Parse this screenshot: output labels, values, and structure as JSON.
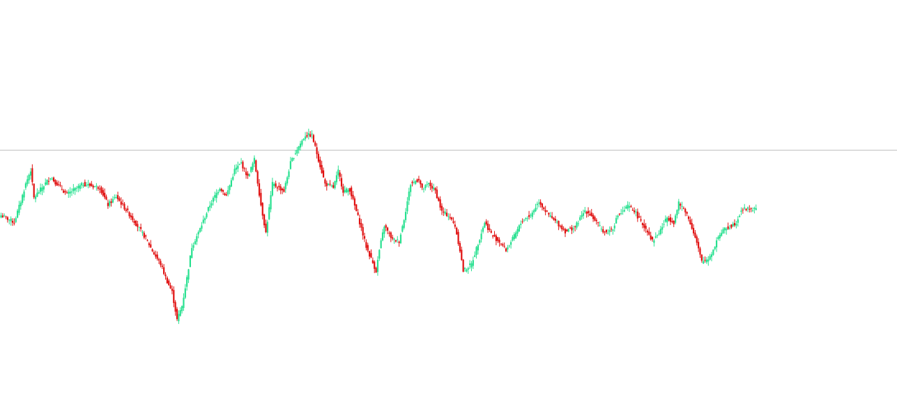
{
  "colors": {
    "background": "#ffffff",
    "bull": "#26e08f",
    "bear": "#e01010",
    "price_line": "#c0c0c0"
  },
  "chart_data": {
    "type": "candlestick",
    "price_range": [
      0,
      564
    ],
    "current_price": 349,
    "grid": false,
    "legend": "none",
    "anchor_closes": [
      [
        0,
        255
      ],
      [
        8,
        245
      ],
      [
        12,
        275
      ],
      [
        15,
        300
      ],
      [
        18,
        320
      ],
      [
        20,
        280
      ],
      [
        30,
        310
      ],
      [
        40,
        285
      ],
      [
        50,
        300
      ],
      [
        60,
        295
      ],
      [
        65,
        270
      ],
      [
        70,
        282
      ],
      [
        80,
        250
      ],
      [
        84,
        236
      ],
      [
        88,
        222
      ],
      [
        93,
        200
      ],
      [
        97,
        185
      ],
      [
        101,
        160
      ],
      [
        104,
        145
      ],
      [
        107,
        105
      ],
      [
        110,
        125
      ],
      [
        113,
        165
      ],
      [
        116,
        210
      ],
      [
        120,
        230
      ],
      [
        127,
        270
      ],
      [
        133,
        295
      ],
      [
        137,
        283
      ],
      [
        142,
        320
      ],
      [
        146,
        330
      ],
      [
        150,
        310
      ],
      [
        154,
        335
      ],
      [
        158,
        270
      ],
      [
        161,
        230
      ],
      [
        165,
        300
      ],
      [
        172,
        290
      ],
      [
        176,
        330
      ],
      [
        180,
        350
      ],
      [
        185,
        370
      ],
      [
        189,
        370
      ],
      [
        193,
        335
      ],
      [
        197,
        300
      ],
      [
        202,
        295
      ],
      [
        205,
        318
      ],
      [
        208,
        290
      ],
      [
        212,
        292
      ],
      [
        218,
        245
      ],
      [
        222,
        210
      ],
      [
        228,
        175
      ],
      [
        230,
        205
      ],
      [
        233,
        240
      ],
      [
        238,
        220
      ],
      [
        242,
        218
      ],
      [
        245,
        250
      ],
      [
        249,
        300
      ],
      [
        254,
        307
      ],
      [
        256,
        292
      ],
      [
        260,
        300
      ],
      [
        264,
        290
      ],
      [
        268,
        260
      ],
      [
        272,
        255
      ],
      [
        276,
        240
      ],
      [
        279,
        205
      ],
      [
        281,
        175
      ],
      [
        286,
        185
      ],
      [
        290,
        215
      ],
      [
        294,
        245
      ],
      [
        299,
        225
      ],
      [
        304,
        215
      ],
      [
        307,
        205
      ],
      [
        312,
        225
      ],
      [
        317,
        248
      ],
      [
        322,
        255
      ],
      [
        327,
        275
      ],
      [
        332,
        258
      ],
      [
        336,
        248
      ],
      [
        339,
        242
      ],
      [
        343,
        232
      ],
      [
        349,
        238
      ],
      [
        352,
        250
      ],
      [
        355,
        262
      ],
      [
        358,
        257
      ],
      [
        362,
        245
      ],
      [
        365,
        235
      ],
      [
        368,
        230
      ],
      [
        372,
        237
      ],
      [
        375,
        255
      ],
      [
        378,
        260
      ],
      [
        381,
        268
      ],
      [
        385,
        262
      ],
      [
        389,
        245
      ],
      [
        393,
        233
      ],
      [
        396,
        218
      ],
      [
        400,
        230
      ],
      [
        405,
        252
      ],
      [
        409,
        245
      ],
      [
        412,
        272
      ],
      [
        416,
        262
      ],
      [
        420,
        238
      ],
      [
        423,
        215
      ],
      [
        426,
        188
      ],
      [
        430,
        193
      ],
      [
        433,
        205
      ],
      [
        436,
        225
      ],
      [
        440,
        235
      ],
      [
        444,
        240
      ],
      [
        447,
        245
      ],
      [
        450,
        263
      ],
      [
        455,
        265
      ],
      [
        459,
        263
      ]
    ]
  }
}
